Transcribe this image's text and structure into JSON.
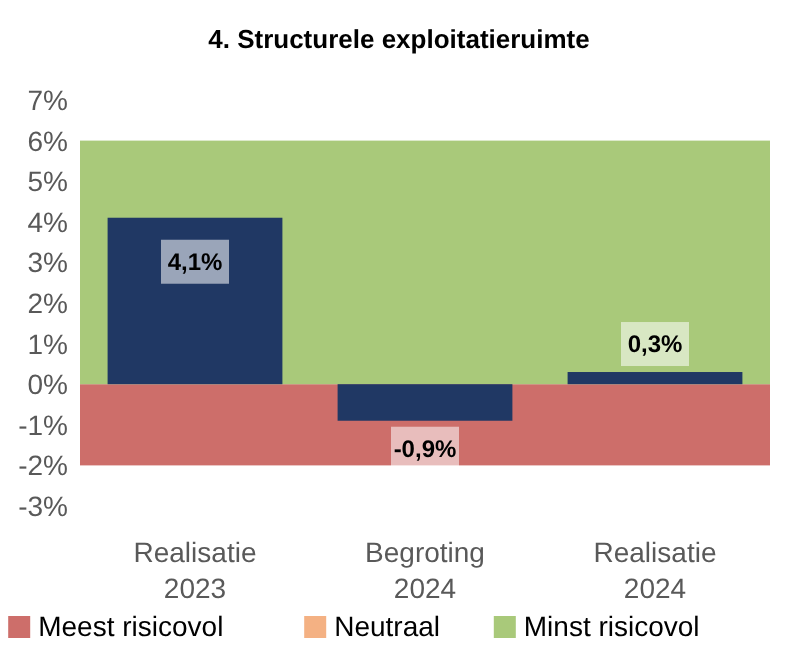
{
  "chart_data": {
    "type": "bar",
    "title": "4. Structurele exploitatieruimte",
    "categories": [
      "Realisatie 2023",
      "Begroting 2024",
      "Realisatie 2024"
    ],
    "series": [
      {
        "color": "#203864",
        "values": [
          4.1,
          -0.9,
          0.3
        ],
        "value_labels": [
          "4,1%",
          "-0,9%",
          "0,3%"
        ]
      },
      {
        "name": "Neutraal",
        "color": "#f4b183",
        "values": [
          null,
          null,
          null
        ]
      }
    ],
    "ylim": [
      -3,
      7
    ],
    "yticks": [
      {
        "value": -3,
        "label": "-3%"
      },
      {
        "value": -2,
        "label": "-2%"
      },
      {
        "value": -1,
        "label": "-1%"
      },
      {
        "value": 0,
        "label": "0%"
      },
      {
        "value": 1,
        "label": "1%"
      },
      {
        "value": 2,
        "label": "2%"
      },
      {
        "value": 3,
        "label": "3%"
      },
      {
        "value": 4,
        "label": "4%"
      },
      {
        "value": 5,
        "label": "5%"
      },
      {
        "value": 6,
        "label": "6%"
      },
      {
        "value": 7,
        "label": "7%"
      }
    ],
    "bands": [
      {
        "axis": "y",
        "from": -2,
        "to": 0,
        "label": "Meest risicovol",
        "color": "#cd6e6a"
      },
      {
        "axis": "y",
        "from": 0,
        "to": 6,
        "label": "Minst risicovol",
        "color": "#a9c97a"
      }
    ],
    "grid": false,
    "legend": "bottom"
  }
}
